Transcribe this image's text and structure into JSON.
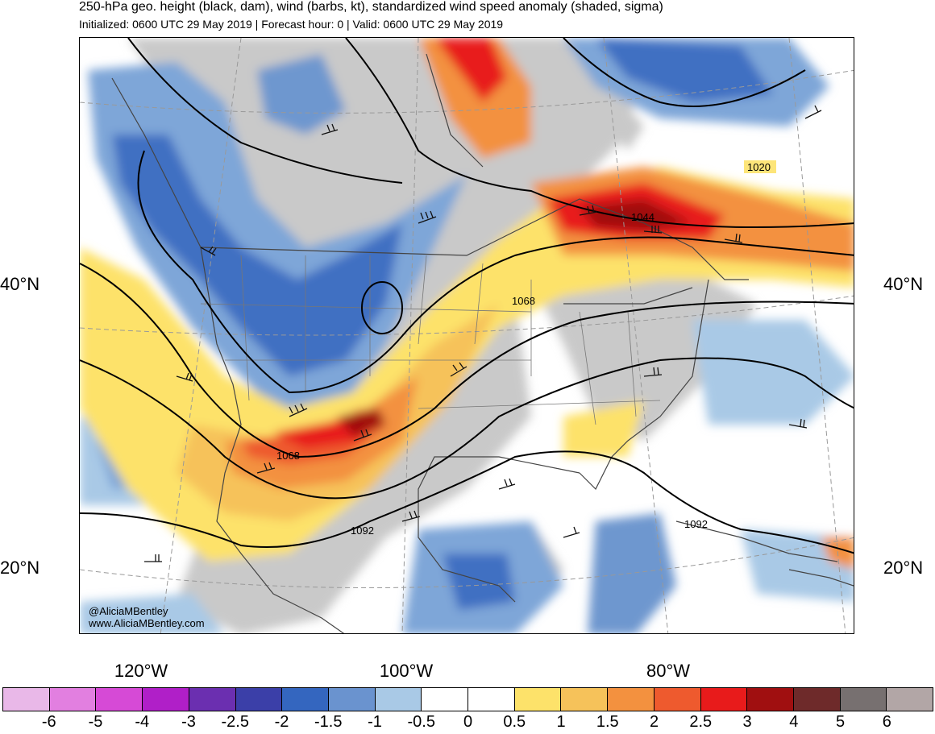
{
  "header": {
    "title": "250-hPa geo. height (black, dam), wind (barbs, kt), standardized wind speed anomaly (shaded, sigma)",
    "subtitle": "Initialized: 0600 UTC 29 May 2019 | Forecast hour: 0 | Valid: 0600 UTC 29 May 2019"
  },
  "map": {
    "lat_labels": [
      "40°N",
      "20°N"
    ],
    "lon_labels": [
      "120°W",
      "100°W",
      "80°W"
    ],
    "contour_labels": [
      "1020",
      "1044",
      "1068",
      "1068",
      "1092",
      "1092"
    ],
    "credit": [
      "@AliciaMBentley",
      "www.AliciaMBentley.com"
    ]
  },
  "colorbar": {
    "labels": [
      "-6",
      "-5",
      "-4",
      "-3",
      "-2.5",
      "-2",
      "-1.5",
      "-1",
      "-0.5",
      "0",
      "0.5",
      "1",
      "1.5",
      "2",
      "2.5",
      "3",
      "4",
      "5",
      "6"
    ],
    "colors": [
      "#e9b8e8",
      "#e27fe0",
      "#d64ad6",
      "#b01fc8",
      "#6b2fb0",
      "#3b3fa8",
      "#3466bf",
      "#6a93cf",
      "#a9c9e6",
      "#ffffff",
      "#ffffff",
      "#fde26a",
      "#f6c25a",
      "#f3913f",
      "#ee5a2e",
      "#e81b1b",
      "#a00f10",
      "#6e2a2a",
      "#777070",
      "#b2a6a6"
    ]
  }
}
